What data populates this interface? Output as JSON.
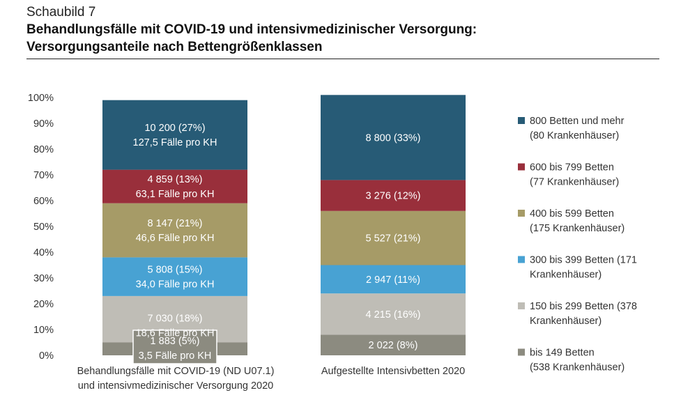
{
  "header": {
    "kicker": "Schaubild 7",
    "title_line1": "Behandlungsfälle mit COVID-19 und intensivmedizinischer Versorgung:",
    "title_line2": "Versorgungsanteile nach Bettengrößenklassen"
  },
  "chart_data": {
    "type": "bar",
    "stacked": true,
    "percent_stacked": true,
    "ylim": [
      0,
      100
    ],
    "yticks": [
      "0%",
      "10%",
      "20%",
      "30%",
      "40%",
      "50%",
      "60%",
      "70%",
      "80%",
      "90%",
      "100%"
    ],
    "categories": [
      [
        "Behandlungsfälle mit COVID-19 (ND U07.1)",
        "und intensivmedizinischer Versorgung 2020"
      ],
      [
        "Aufgestellte Intensivbetten 2020"
      ]
    ],
    "series": [
      {
        "name": [
          "bis 149 Betten",
          "(538 Krankenhäuser)"
        ],
        "color": "#8c8b80",
        "values": [
          5,
          8
        ],
        "labels": [
          [
            "1 883 (5%)",
            "3,5 Fälle pro KH"
          ],
          [
            "2 022 (8%)"
          ]
        ]
      },
      {
        "name": [
          "150 bis 299 Betten (378",
          "Krankenhäuser)"
        ],
        "color": "#bfbdb6",
        "values": [
          18,
          16
        ],
        "labels": [
          [
            "7 030 (18%)",
            "18,6 Fälle pro KH"
          ],
          [
            "4 215 (16%)"
          ]
        ]
      },
      {
        "name": [
          "300 bis 399 Betten (171",
          "Krankenhäuser)"
        ],
        "color": "#48a2d3",
        "values": [
          15,
          11
        ],
        "labels": [
          [
            "5 808 (15%)",
            "34,0 Fälle pro KH"
          ],
          [
            "2 947 (11%)"
          ]
        ]
      },
      {
        "name": [
          "400 bis 599 Betten",
          "(175 Krankenhäuser)"
        ],
        "color": "#a69b67",
        "values": [
          21,
          21
        ],
        "labels": [
          [
            "8 147 (21%)",
            "46,6 Fälle pro KH"
          ],
          [
            "5 527 (21%)"
          ]
        ]
      },
      {
        "name": [
          "600 bis 799 Betten",
          "(77 Krankenhäuser)"
        ],
        "color": "#992f3b",
        "values": [
          13,
          12
        ],
        "labels": [
          [
            "4 859 (13%)",
            "63,1 Fälle pro KH"
          ],
          [
            "3 276 (12%)"
          ]
        ]
      },
      {
        "name": [
          "800 Betten und mehr",
          "(80 Krankenhäuser)"
        ],
        "color": "#275b76",
        "values": [
          27,
          33
        ],
        "labels": [
          [
            "10 200 (27%)",
            "127,5 Fälle pro KH"
          ],
          [
            "8 800 (33%)"
          ]
        ]
      }
    ],
    "gridlines": false,
    "legend_position": "right"
  }
}
